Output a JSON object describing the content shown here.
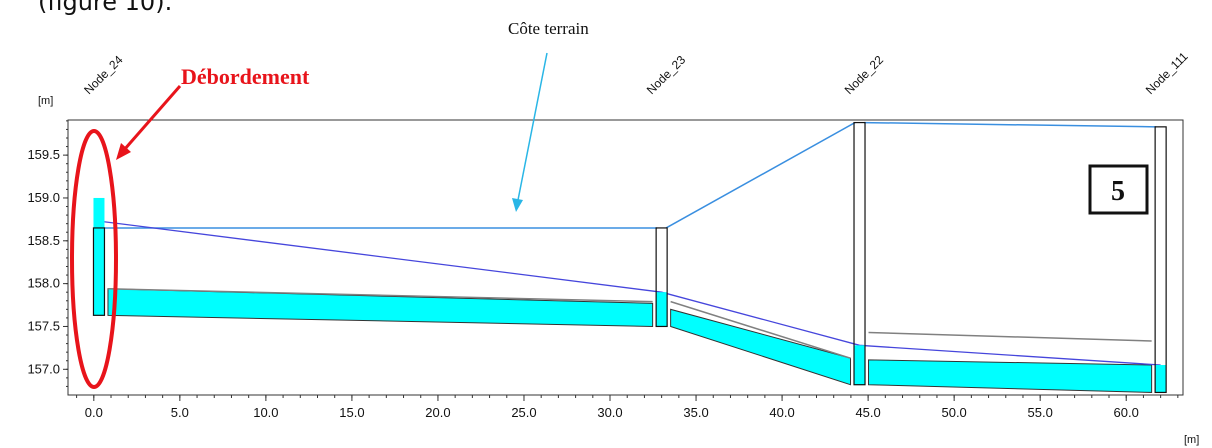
{
  "caption": "(figure 10).",
  "chart_data": {
    "type": "line",
    "title": "",
    "xlabel": "[m]",
    "ylabel": "[m]",
    "xlim": [
      -1.5,
      63.3
    ],
    "ylim": [
      156.7,
      159.91
    ],
    "x_ticks": [
      "0.0",
      "5.0",
      "10.0",
      "15.0",
      "20.0",
      "25.0",
      "30.0",
      "35.0",
      "40.0",
      "45.0",
      "50.0",
      "55.0",
      "60.0"
    ],
    "x_tick_values": [
      0,
      5,
      10,
      15,
      20,
      25,
      30,
      35,
      40,
      45,
      50,
      55,
      60
    ],
    "y_ticks": [
      "157.0",
      "157.5",
      "158.0",
      "158.5",
      "159.0",
      "159.5"
    ],
    "y_tick_values": [
      157.0,
      157.5,
      158.0,
      158.5,
      159.0,
      159.5
    ],
    "nodes": [
      {
        "name": "Node_24",
        "x": 0.3,
        "ground": 158.65,
        "invert": 157.63,
        "water": 159.0
      },
      {
        "name": "Node_23",
        "x": 33.0,
        "ground": 158.65,
        "invert": 157.5,
        "water": 157.9
      },
      {
        "name": "Node_22",
        "x": 44.5,
        "ground": 159.88,
        "invert": 156.82,
        "water": 157.28
      },
      {
        "name": "Node_111",
        "x": 62.0,
        "ground": 159.83,
        "invert": 156.73,
        "water": 157.05
      }
    ],
    "pipes": [
      {
        "from": "Node_24",
        "to": "Node_23",
        "start_invert": 157.63,
        "end_invert": 157.5,
        "start_crown": 157.94,
        "end_crown": 157.79,
        "start_water": 157.94,
        "end_water": 157.77
      },
      {
        "from": "Node_23",
        "to": "Node_22",
        "start_invert": 157.5,
        "end_invert": 156.82,
        "start_crown": 157.79,
        "end_crown": 157.13,
        "start_water": 157.7,
        "end_water": 157.13
      },
      {
        "from": "Node_22",
        "to": "Node_111",
        "start_invert": 156.82,
        "end_invert": 156.73,
        "start_crown": 157.43,
        "end_crown": 157.33,
        "start_water": 157.11,
        "end_water": 157.05
      }
    ],
    "hgl": [
      [
        0.3,
        158.73
      ],
      [
        33.0,
        157.9
      ],
      [
        44.5,
        157.28
      ],
      [
        62.0,
        157.05
      ]
    ],
    "colors": {
      "water": "#00ffff",
      "hgl": "#4646dc",
      "ground": "#3a8fe0",
      "crown": "#808080",
      "annotation_red": "#e8141b",
      "annotation_blue": "#29b6e6"
    },
    "annotations": {
      "overflow": "Débordement",
      "ground_level": "Côte terrain",
      "profile_number": "5"
    },
    "grid": false,
    "legend": "none"
  }
}
